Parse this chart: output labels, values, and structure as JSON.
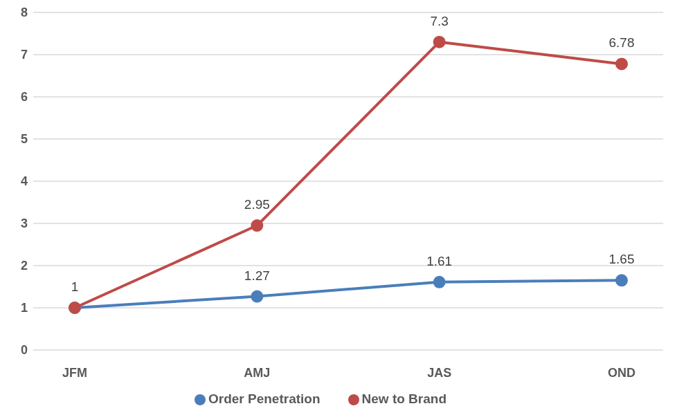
{
  "chart_data": {
    "type": "line",
    "categories": [
      "JFM",
      "AMJ",
      "JAS",
      "OND"
    ],
    "series": [
      {
        "name": "Order Penetration",
        "color": "#4a7ebb",
        "values": [
          1,
          1.27,
          1.61,
          1.65
        ],
        "value_labels": [
          null,
          "1.27",
          "1.61",
          "1.65"
        ]
      },
      {
        "name": "New to Brand",
        "color": "#be4b48",
        "values": [
          1,
          2.95,
          7.3,
          6.78
        ],
        "value_labels": [
          "1",
          "2.95",
          "7.3",
          "6.78"
        ]
      }
    ],
    "ylim": [
      0,
      8
    ],
    "yticks": [
      0,
      1,
      2,
      3,
      4,
      5,
      6,
      7,
      8
    ],
    "grid": "y",
    "legend": "bottom",
    "marker": "circle",
    "line_style": "solid"
  }
}
